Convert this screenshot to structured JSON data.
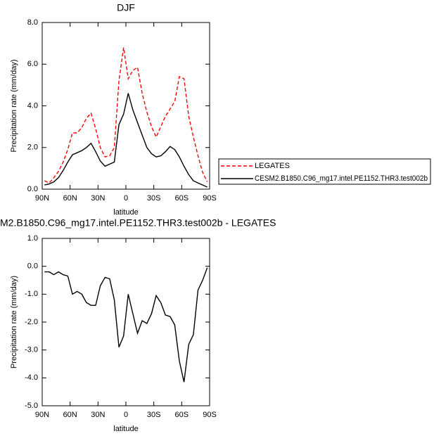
{
  "chart_data": [
    {
      "type": "line",
      "title": "DJF",
      "xlabel": "latitude",
      "ylabel": "Precipitation rate (mm/day)",
      "x": [
        87.5,
        82.5,
        77.5,
        72.5,
        67.5,
        62.5,
        57.5,
        52.5,
        47.5,
        42.5,
        37.5,
        32.5,
        27.5,
        22.5,
        17.5,
        12.5,
        7.5,
        2.5,
        -2.5,
        -7.5,
        -12.5,
        -17.5,
        -22.5,
        -27.5,
        -32.5,
        -37.5,
        -42.5,
        -47.5,
        -52.5,
        -57.5,
        -62.5,
        -67.5,
        -72.5,
        -77.5,
        -82.5,
        -87.5
      ],
      "series": [
        {
          "name": "LEGATES",
          "color": "#ff0000",
          "line_style": "dashed",
          "values": [
            0.4,
            0.3,
            0.55,
            0.85,
            1.3,
            1.9,
            2.7,
            2.7,
            2.95,
            3.4,
            3.65,
            2.9,
            2.0,
            1.55,
            1.6,
            2.0,
            5.2,
            6.8,
            5.3,
            5.7,
            5.85,
            4.6,
            3.7,
            3.0,
            2.5,
            3.0,
            3.5,
            3.85,
            4.2,
            5.4,
            5.3,
            3.5,
            2.5,
            1.6,
            0.8,
            0.35
          ]
        },
        {
          "name": "CESM2.B1850.C96_mg17.intel.PE1152.THR3.test002b",
          "color": "#000000",
          "line_style": "solid",
          "values": [
            0.2,
            0.25,
            0.35,
            0.55,
            0.9,
            1.3,
            1.65,
            1.75,
            1.85,
            2.0,
            2.2,
            1.8,
            1.35,
            1.1,
            1.2,
            1.3,
            3.1,
            3.6,
            4.6,
            3.8,
            3.2,
            2.6,
            2.0,
            1.7,
            1.55,
            1.6,
            1.8,
            2.05,
            1.9,
            1.55,
            1.1,
            0.7,
            0.4,
            0.3,
            0.2,
            0.1
          ]
        }
      ],
      "xlim": [
        90,
        -90
      ],
      "xticks": [
        {
          "value": 90,
          "label": "90N"
        },
        {
          "value": 60,
          "label": "60N"
        },
        {
          "value": 30,
          "label": "30N"
        },
        0,
        {
          "value": -30,
          "label": "30S"
        },
        {
          "value": -60,
          "label": "60S"
        },
        {
          "value": -90,
          "label": "90S"
        }
      ],
      "ylim": [
        0,
        8
      ],
      "yticks": [
        {
          "value": 0,
          "label": "0.0"
        },
        {
          "value": 2,
          "label": "2.0"
        },
        {
          "value": 4,
          "label": "4.0"
        },
        {
          "value": 6,
          "label": "6.0"
        },
        {
          "value": 8,
          "label": "8.0"
        }
      ],
      "legend": "outside-right"
    },
    {
      "type": "line",
      "title": "M2.B1850.C96_mg17.intel.PE1152.THR3.test002b - LEGATES",
      "xlabel": "latitude",
      "ylabel": "Precipitation rate (mm/day)",
      "x": [
        87.5,
        82.5,
        77.5,
        72.5,
        67.5,
        62.5,
        57.5,
        52.5,
        47.5,
        42.5,
        37.5,
        32.5,
        27.5,
        22.5,
        17.5,
        12.5,
        7.5,
        2.5,
        -2.5,
        -7.5,
        -12.5,
        -17.5,
        -22.5,
        -27.5,
        -32.5,
        -37.5,
        -42.5,
        -47.5,
        -52.5,
        -57.5,
        -62.5,
        -67.5,
        -72.5,
        -77.5,
        -82.5,
        -87.5
      ],
      "series": [
        {
          "color": "#000000",
          "line_style": "solid",
          "values": [
            -0.2,
            -0.2,
            -0.3,
            -0.2,
            -0.3,
            -0.35,
            -1.0,
            -0.9,
            -1.0,
            -1.3,
            -1.4,
            -1.4,
            -0.7,
            -0.4,
            -0.45,
            -1.2,
            -2.9,
            -2.5,
            -1.0,
            -1.7,
            -2.4,
            -1.95,
            -2.05,
            -1.7,
            -1.05,
            -1.3,
            -1.75,
            -1.8,
            -2.1,
            -3.4,
            -4.15,
            -2.8,
            -2.45,
            -0.85,
            -0.5,
            -0.05
          ]
        }
      ],
      "xlim": [
        90,
        -90
      ],
      "xticks": [
        {
          "value": 90,
          "label": "90N"
        },
        {
          "value": 60,
          "label": "60N"
        },
        {
          "value": 30,
          "label": "30N"
        },
        0,
        {
          "value": -30,
          "label": "30S"
        },
        {
          "value": -60,
          "label": "60S"
        },
        {
          "value": -90,
          "label": "90S"
        }
      ],
      "ylim": [
        -5,
        1
      ],
      "yticks": [
        {
          "value": -5,
          "label": "-5.0"
        },
        {
          "value": -4,
          "label": "-4.0"
        },
        {
          "value": -3,
          "label": "-3.0"
        },
        {
          "value": -2,
          "label": "-2.0"
        },
        {
          "value": -1,
          "label": "-1.0"
        },
        {
          "value": 0,
          "label": "0.0"
        },
        {
          "value": 1,
          "label": "1.0"
        }
      ]
    }
  ]
}
